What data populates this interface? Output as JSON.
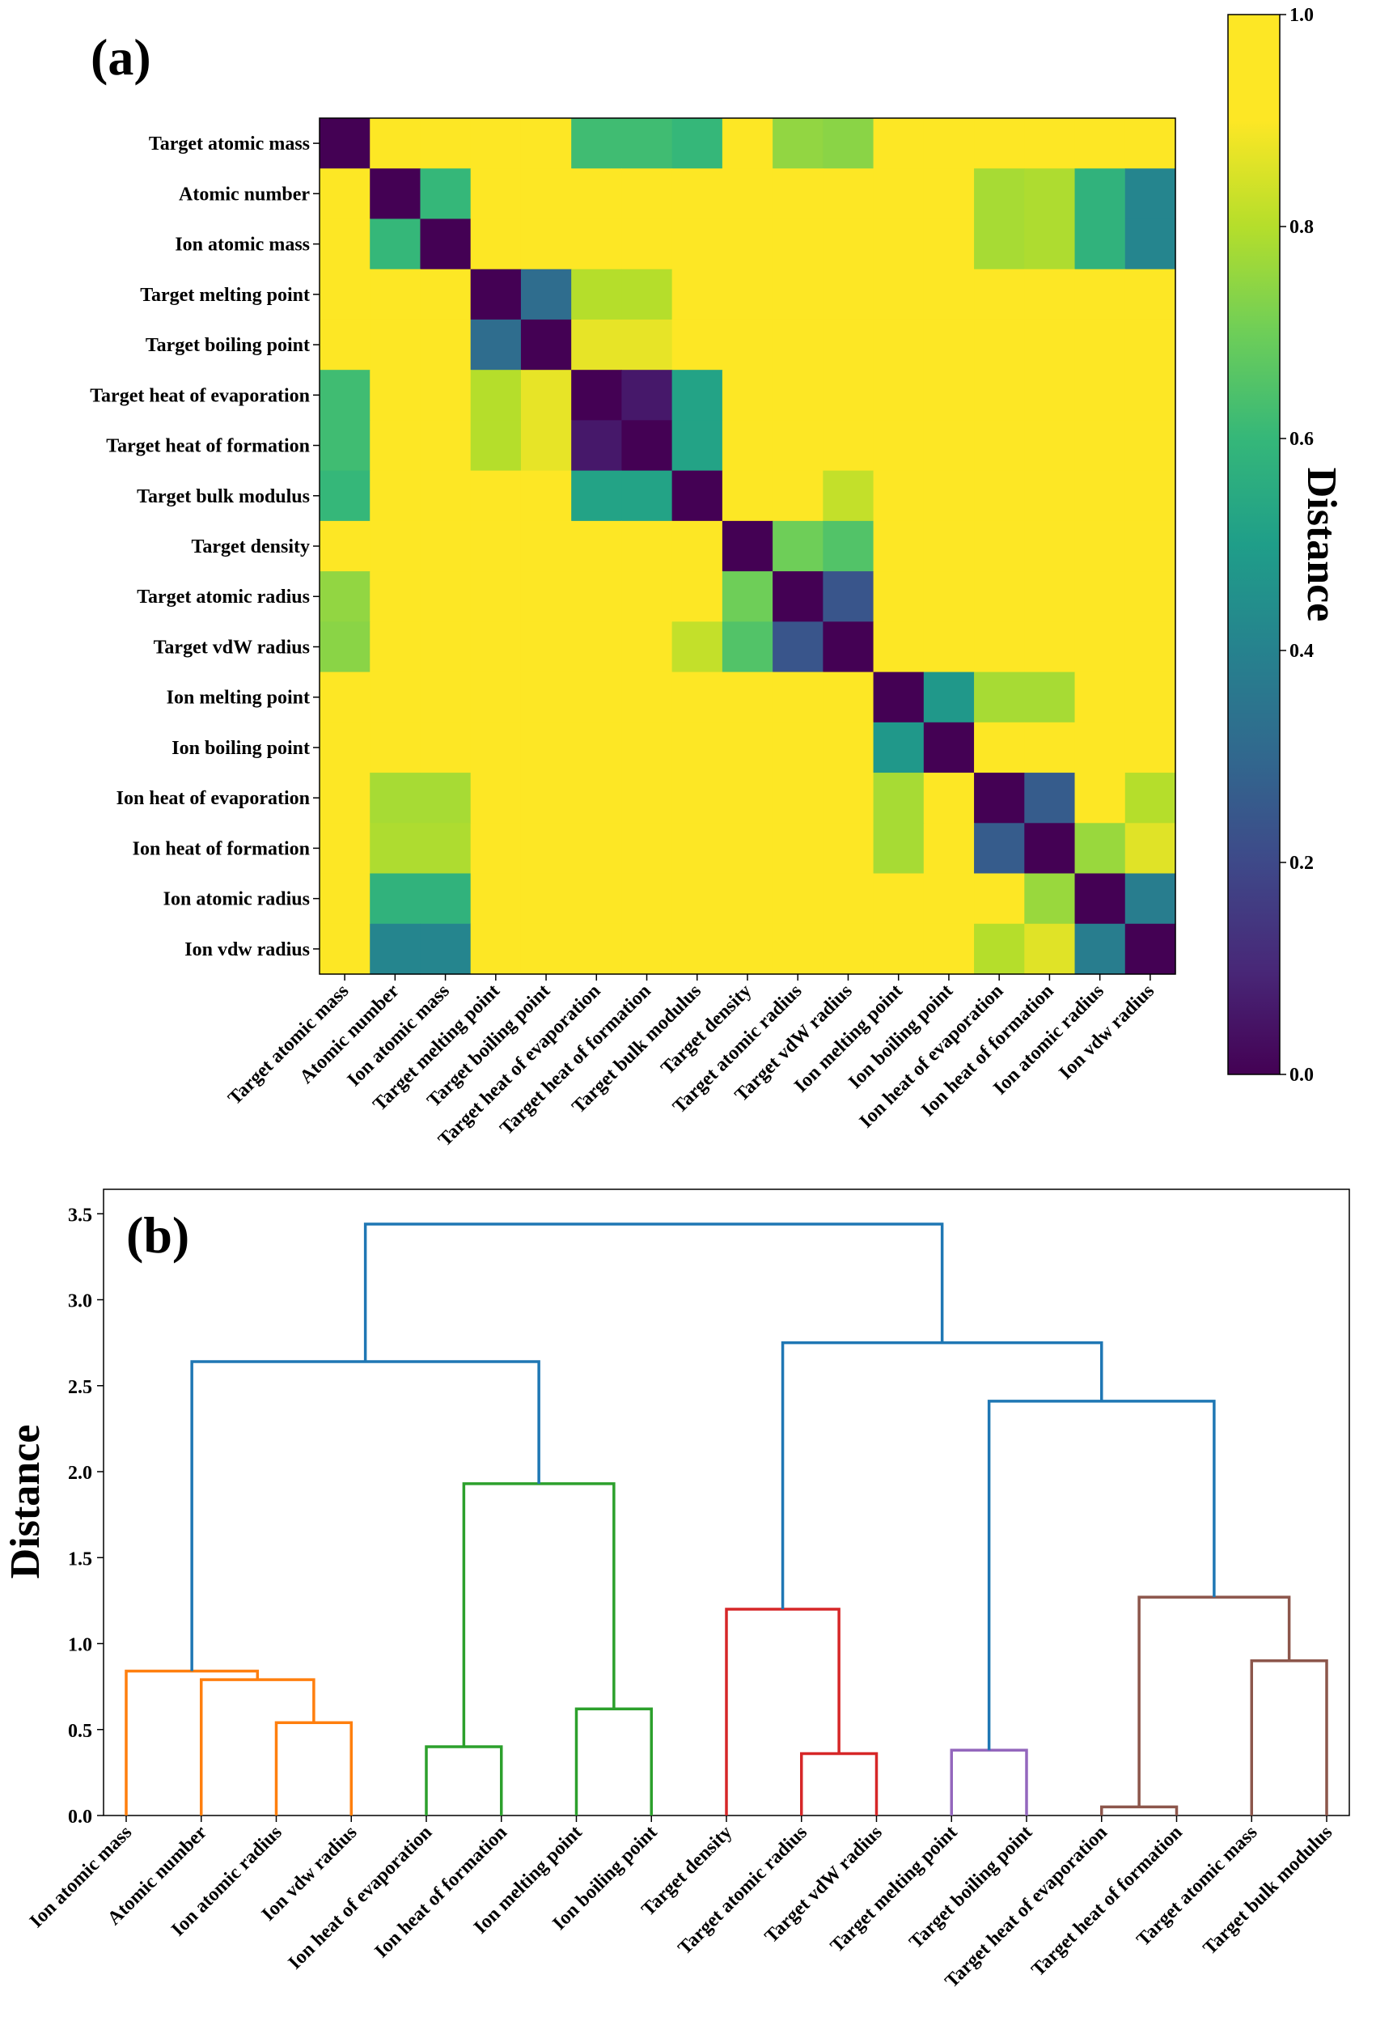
{
  "chart_data": [
    {
      "type": "heatmap",
      "panel_label": "(a)",
      "labels": [
        "Target atomic mass",
        "Atomic number",
        "Ion atomic mass",
        "Target melting point",
        "Target boiling point",
        "Target heat of evaporation",
        "Target heat of formation",
        "Target bulk modulus",
        "Target density",
        "Target atomic radius",
        "Target vdW radius",
        "Ion melting point",
        "Ion boiling point",
        "Ion heat of evaporation",
        "Ion heat of formation",
        "Ion atomic radius",
        "Ion vdw radius"
      ],
      "matrix": [
        [
          0.0,
          0.92,
          0.92,
          0.93,
          0.95,
          0.62,
          0.62,
          0.6,
          0.92,
          0.75,
          0.74,
          0.97,
          0.97,
          0.97,
          0.95,
          0.92,
          0.92
        ],
        [
          0.92,
          0.0,
          0.6,
          0.99,
          0.99,
          0.99,
          0.99,
          0.95,
          0.9,
          0.93,
          0.92,
          0.96,
          0.96,
          0.78,
          0.79,
          0.58,
          0.41
        ],
        [
          0.92,
          0.6,
          0.0,
          0.99,
          0.99,
          0.99,
          0.99,
          0.95,
          0.9,
          0.92,
          0.91,
          0.9,
          0.92,
          0.78,
          0.79,
          0.58,
          0.41
        ],
        [
          0.93,
          0.99,
          0.99,
          0.0,
          0.32,
          0.8,
          0.8,
          0.91,
          0.99,
          0.98,
          0.98,
          0.91,
          0.95,
          0.93,
          0.94,
          0.98,
          0.98
        ],
        [
          0.95,
          0.99,
          0.99,
          0.32,
          0.0,
          0.87,
          0.87,
          0.93,
          0.99,
          0.98,
          0.98,
          0.94,
          0.97,
          0.95,
          0.96,
          0.96,
          0.96
        ],
        [
          0.62,
          0.99,
          0.99,
          0.8,
          0.87,
          0.0,
          0.06,
          0.52,
          0.95,
          0.93,
          0.9,
          0.94,
          0.95,
          0.94,
          0.96,
          0.96,
          0.96
        ],
        [
          0.62,
          0.99,
          0.99,
          0.8,
          0.87,
          0.06,
          0.0,
          0.52,
          0.95,
          0.94,
          0.9,
          0.94,
          0.96,
          0.95,
          0.99,
          0.95,
          0.96
        ],
        [
          0.6,
          0.95,
          0.95,
          0.91,
          0.93,
          0.52,
          0.52,
          0.0,
          0.93,
          0.98,
          0.82,
          0.95,
          0.95,
          0.95,
          0.95,
          0.95,
          0.95
        ],
        [
          0.92,
          0.9,
          0.9,
          0.99,
          0.99,
          0.95,
          0.95,
          0.93,
          0.0,
          0.7,
          0.65,
          0.98,
          0.98,
          0.99,
          0.99,
          0.91,
          0.92
        ],
        [
          0.75,
          0.93,
          0.92,
          0.98,
          0.98,
          0.93,
          0.94,
          0.98,
          0.7,
          0.0,
          0.24,
          0.97,
          0.97,
          0.93,
          0.9,
          0.93,
          0.95
        ],
        [
          0.74,
          0.92,
          0.91,
          0.98,
          0.98,
          0.9,
          0.9,
          0.82,
          0.65,
          0.24,
          0.0,
          0.97,
          0.97,
          0.95,
          0.92,
          0.91,
          0.92
        ],
        [
          0.97,
          0.96,
          0.9,
          0.91,
          0.94,
          0.94,
          0.94,
          0.95,
          0.98,
          0.97,
          0.97,
          0.0,
          0.48,
          0.78,
          0.78,
          0.95,
          0.94
        ],
        [
          0.97,
          0.96,
          0.92,
          0.95,
          0.97,
          0.95,
          0.96,
          0.95,
          0.98,
          0.97,
          0.97,
          0.48,
          0.0,
          0.9,
          0.9,
          0.96,
          0.95
        ],
        [
          0.97,
          0.78,
          0.78,
          0.93,
          0.95,
          0.94,
          0.95,
          0.95,
          0.99,
          0.93,
          0.95,
          0.78,
          0.9,
          0.0,
          0.26,
          0.96,
          0.8
        ],
        [
          0.95,
          0.79,
          0.79,
          0.94,
          0.96,
          0.96,
          0.99,
          0.95,
          0.99,
          0.9,
          0.92,
          0.78,
          0.9,
          0.26,
          0.0,
          0.76,
          0.86
        ],
        [
          0.92,
          0.58,
          0.58,
          0.98,
          0.96,
          0.96,
          0.95,
          0.95,
          0.91,
          0.93,
          0.91,
          0.95,
          0.96,
          0.96,
          0.76,
          0.0,
          0.38
        ],
        [
          0.92,
          0.41,
          0.41,
          0.98,
          0.96,
          0.96,
          0.96,
          0.95,
          0.92,
          0.95,
          0.92,
          0.94,
          0.95,
          0.8,
          0.86,
          0.38,
          0.0
        ]
      ],
      "colorbar": {
        "label": "Distance",
        "ticks": [
          "0.0",
          "0.2",
          "0.4",
          "0.6",
          "0.8",
          "1.0"
        ],
        "range": [
          0.0,
          1.0
        ],
        "colormap": "viridis"
      }
    },
    {
      "type": "dendrogram",
      "panel_label": "(b)",
      "ylabel": "Distance",
      "ylim": [
        0,
        3.6
      ],
      "yticks": [
        "0.0",
        "0.5",
        "1.0",
        "1.5",
        "2.0",
        "2.5",
        "3.0",
        "3.5"
      ],
      "leaves": [
        "Ion atomic mass",
        "Atomic number",
        "Ion atomic radius",
        "Ion vdw radius",
        "Ion heat of evaporation",
        "Ion heat of formation",
        "Ion melting point",
        "Ion boiling point",
        "Target density",
        "Target atomic radius",
        "Target vdW radius",
        "Target melting point",
        "Target boiling point",
        "Target heat of evaporation",
        "Target heat of formation",
        "Target atomic mass",
        "Target bulk modulus"
      ],
      "links": [
        {
          "a": 2,
          "b": 3,
          "h": 0.54,
          "color": "#ff7f0e"
        },
        {
          "a": 1,
          "b": "n0",
          "h": 0.79,
          "color": "#ff7f0e"
        },
        {
          "a": 0,
          "b": "n1",
          "h": 0.84,
          "color": "#ff7f0e"
        },
        {
          "a": 4,
          "b": 5,
          "h": 0.4,
          "color": "#2ca02c"
        },
        {
          "a": 6,
          "b": 7,
          "h": 0.62,
          "color": "#2ca02c"
        },
        {
          "a": "n3",
          "b": "n4",
          "h": 1.93,
          "color": "#2ca02c"
        },
        {
          "a": "n2",
          "b": "n5",
          "h": 2.64,
          "color": "#1f77b4"
        },
        {
          "a": 9,
          "b": 10,
          "h": 0.36,
          "color": "#d62728"
        },
        {
          "a": 8,
          "b": "n7",
          "h": 1.2,
          "color": "#d62728"
        },
        {
          "a": 11,
          "b": 12,
          "h": 0.38,
          "color": "#9467bd"
        },
        {
          "a": 13,
          "b": 14,
          "h": 0.05,
          "color": "#8c564b"
        },
        {
          "a": 15,
          "b": 16,
          "h": 0.9,
          "color": "#8c564b"
        },
        {
          "a": "n10",
          "b": "n11",
          "h": 1.27,
          "color": "#8c564b"
        },
        {
          "a": "n9",
          "b": "n12",
          "h": 2.41,
          "color": "#1f77b4"
        },
        {
          "a": "n8",
          "b": "n13",
          "h": 2.75,
          "color": "#1f77b4"
        },
        {
          "a": "n6",
          "b": "n14",
          "h": 3.44,
          "color": "#1f77b4"
        }
      ]
    }
  ]
}
